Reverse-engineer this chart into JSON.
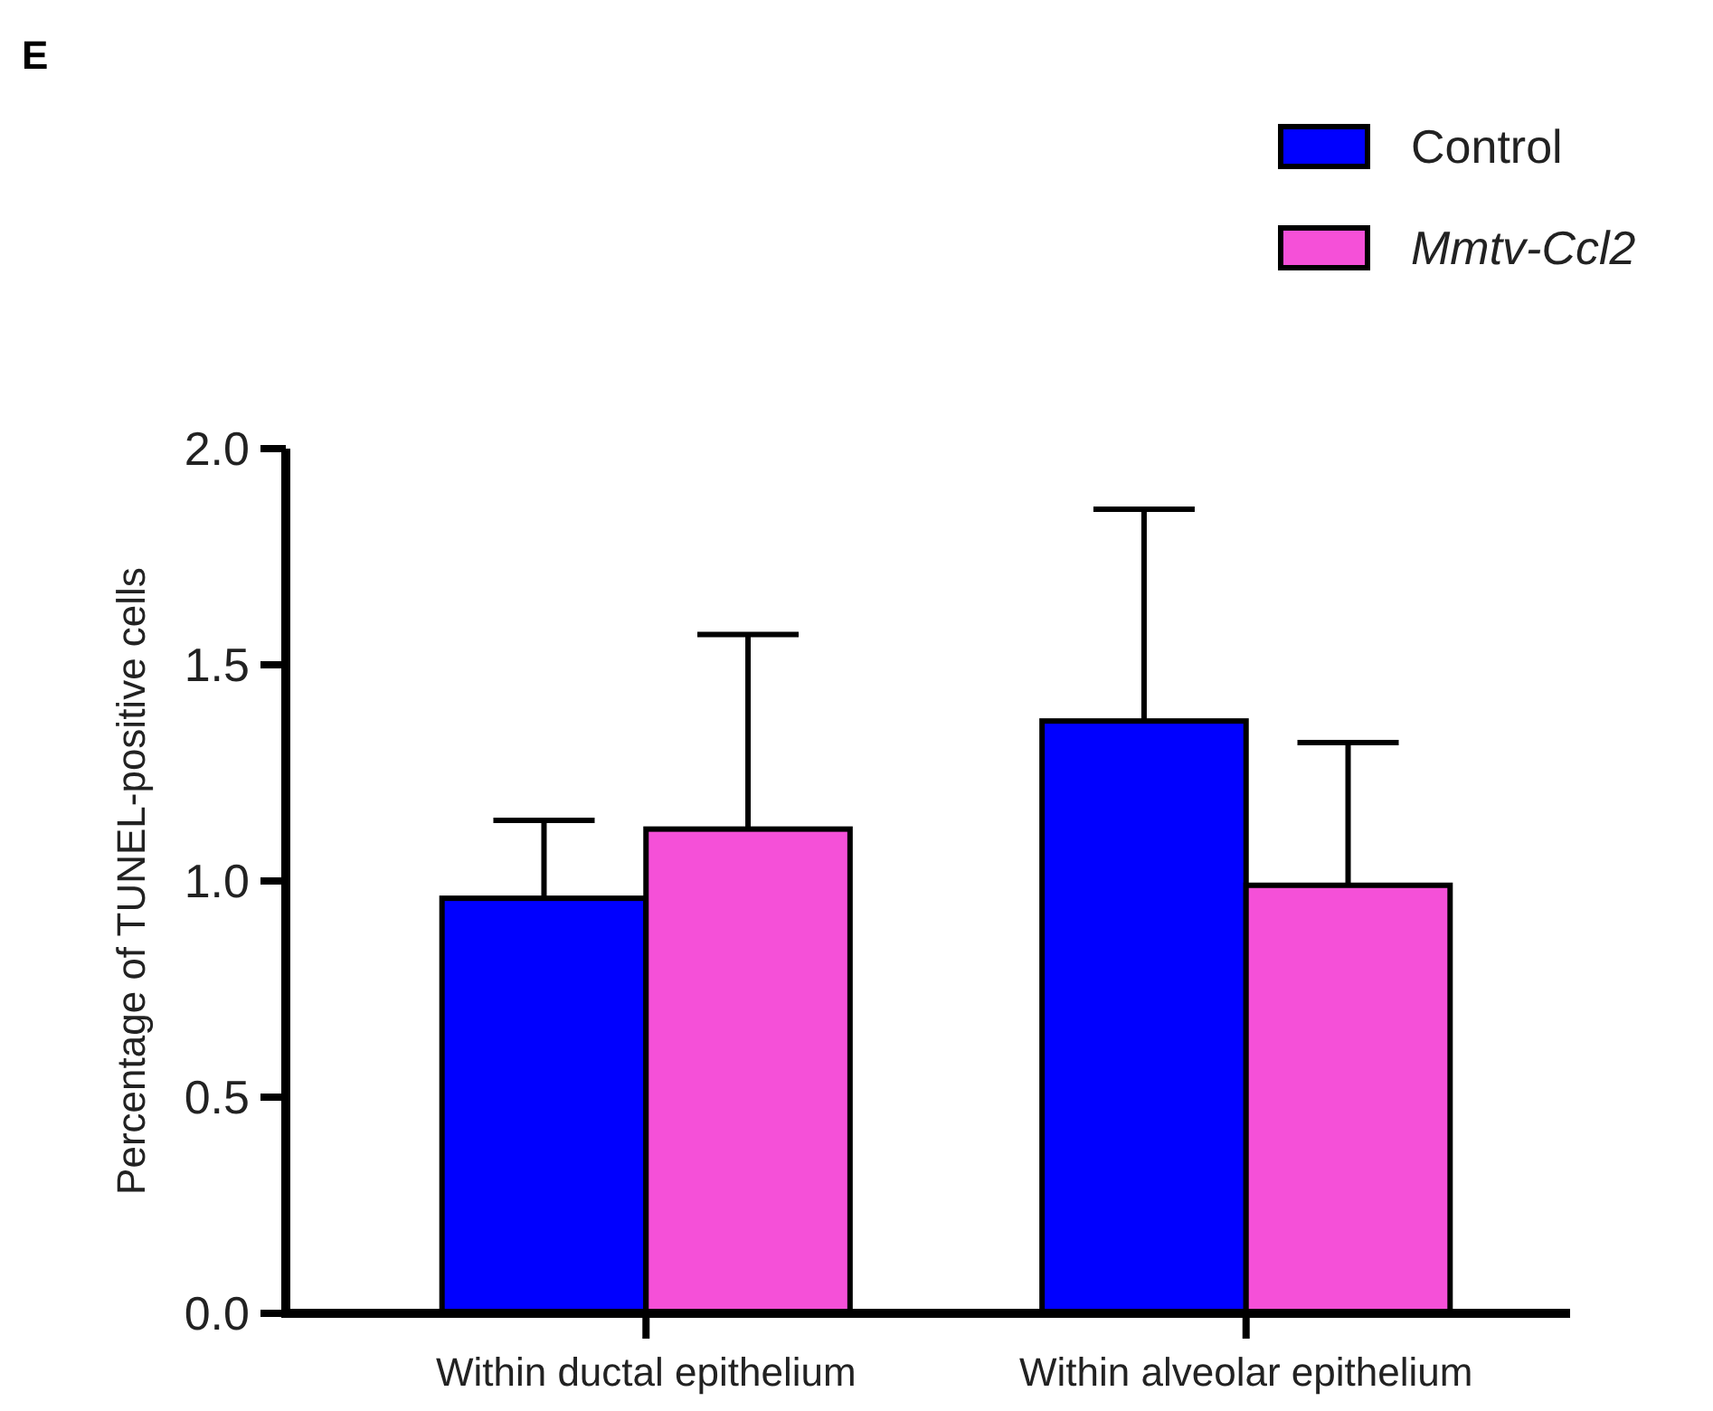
{
  "chart_data": {
    "type": "bar",
    "title": "E",
    "ylabel": "Percentage of TUNEL-positive cells",
    "categories": [
      "Within ductal epithelium",
      "Within alveolar epithelium"
    ],
    "series": [
      {
        "name": "Control",
        "color": "#0000ff",
        "values": [
          0.96,
          1.37
        ],
        "errors": [
          [
            0.96,
            1.14
          ],
          [
            1.37,
            1.86
          ]
        ]
      },
      {
        "name": "Mmtv-Ccl2",
        "color": "#f550d8",
        "values": [
          1.12,
          0.99
        ],
        "errors": [
          [
            1.12,
            1.57
          ],
          [
            0.99,
            1.32
          ]
        ]
      }
    ],
    "ylim": [
      0,
      2
    ],
    "yticks": [
      {
        "value": 0,
        "label": "0.0"
      },
      {
        "value": 0.5,
        "label": "0.5"
      },
      {
        "value": 1,
        "label": "1.0"
      },
      {
        "value": 1.5,
        "label": "1.5"
      },
      {
        "value": 2,
        "label": "2.0"
      }
    ],
    "legend": "top right",
    "grid": false
  }
}
